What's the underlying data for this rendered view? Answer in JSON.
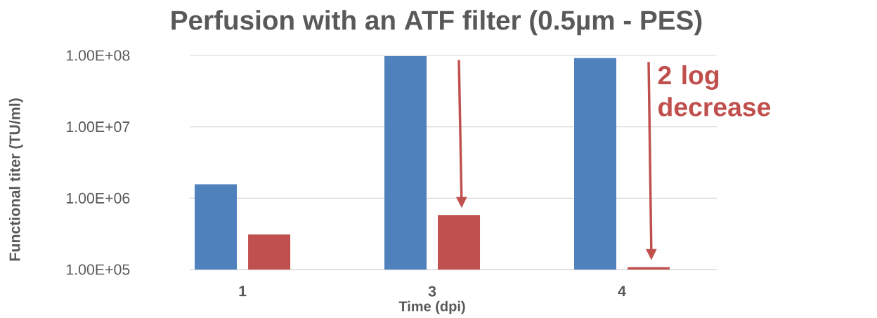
{
  "chart_data": {
    "type": "bar",
    "title": "Perfusion with an ATF filter (0.5µm - PES)",
    "xlabel": "Time (dpi)",
    "ylabel": "Functional titer (TU/ml)",
    "categories": [
      "1",
      "3",
      "4"
    ],
    "series": [
      {
        "color": "#4f81bd",
        "values": [
          1570000,
          98000000,
          92000000
        ]
      },
      {
        "color": "#c0504d",
        "values": [
          310000,
          580000,
          108000
        ]
      }
    ],
    "log": "y",
    "ylim": [
      100000,
      100000000
    ],
    "yticks": [
      {
        "value": 100000,
        "label": "1.00E+05"
      },
      {
        "value": 1000000,
        "label": "1.00E+06"
      },
      {
        "value": 10000000,
        "label": "1.00E+07"
      },
      {
        "value": 100000000,
        "label": "1.00E+08"
      }
    ],
    "grid": "y",
    "annotations": [
      "2 log decrease"
    ]
  }
}
